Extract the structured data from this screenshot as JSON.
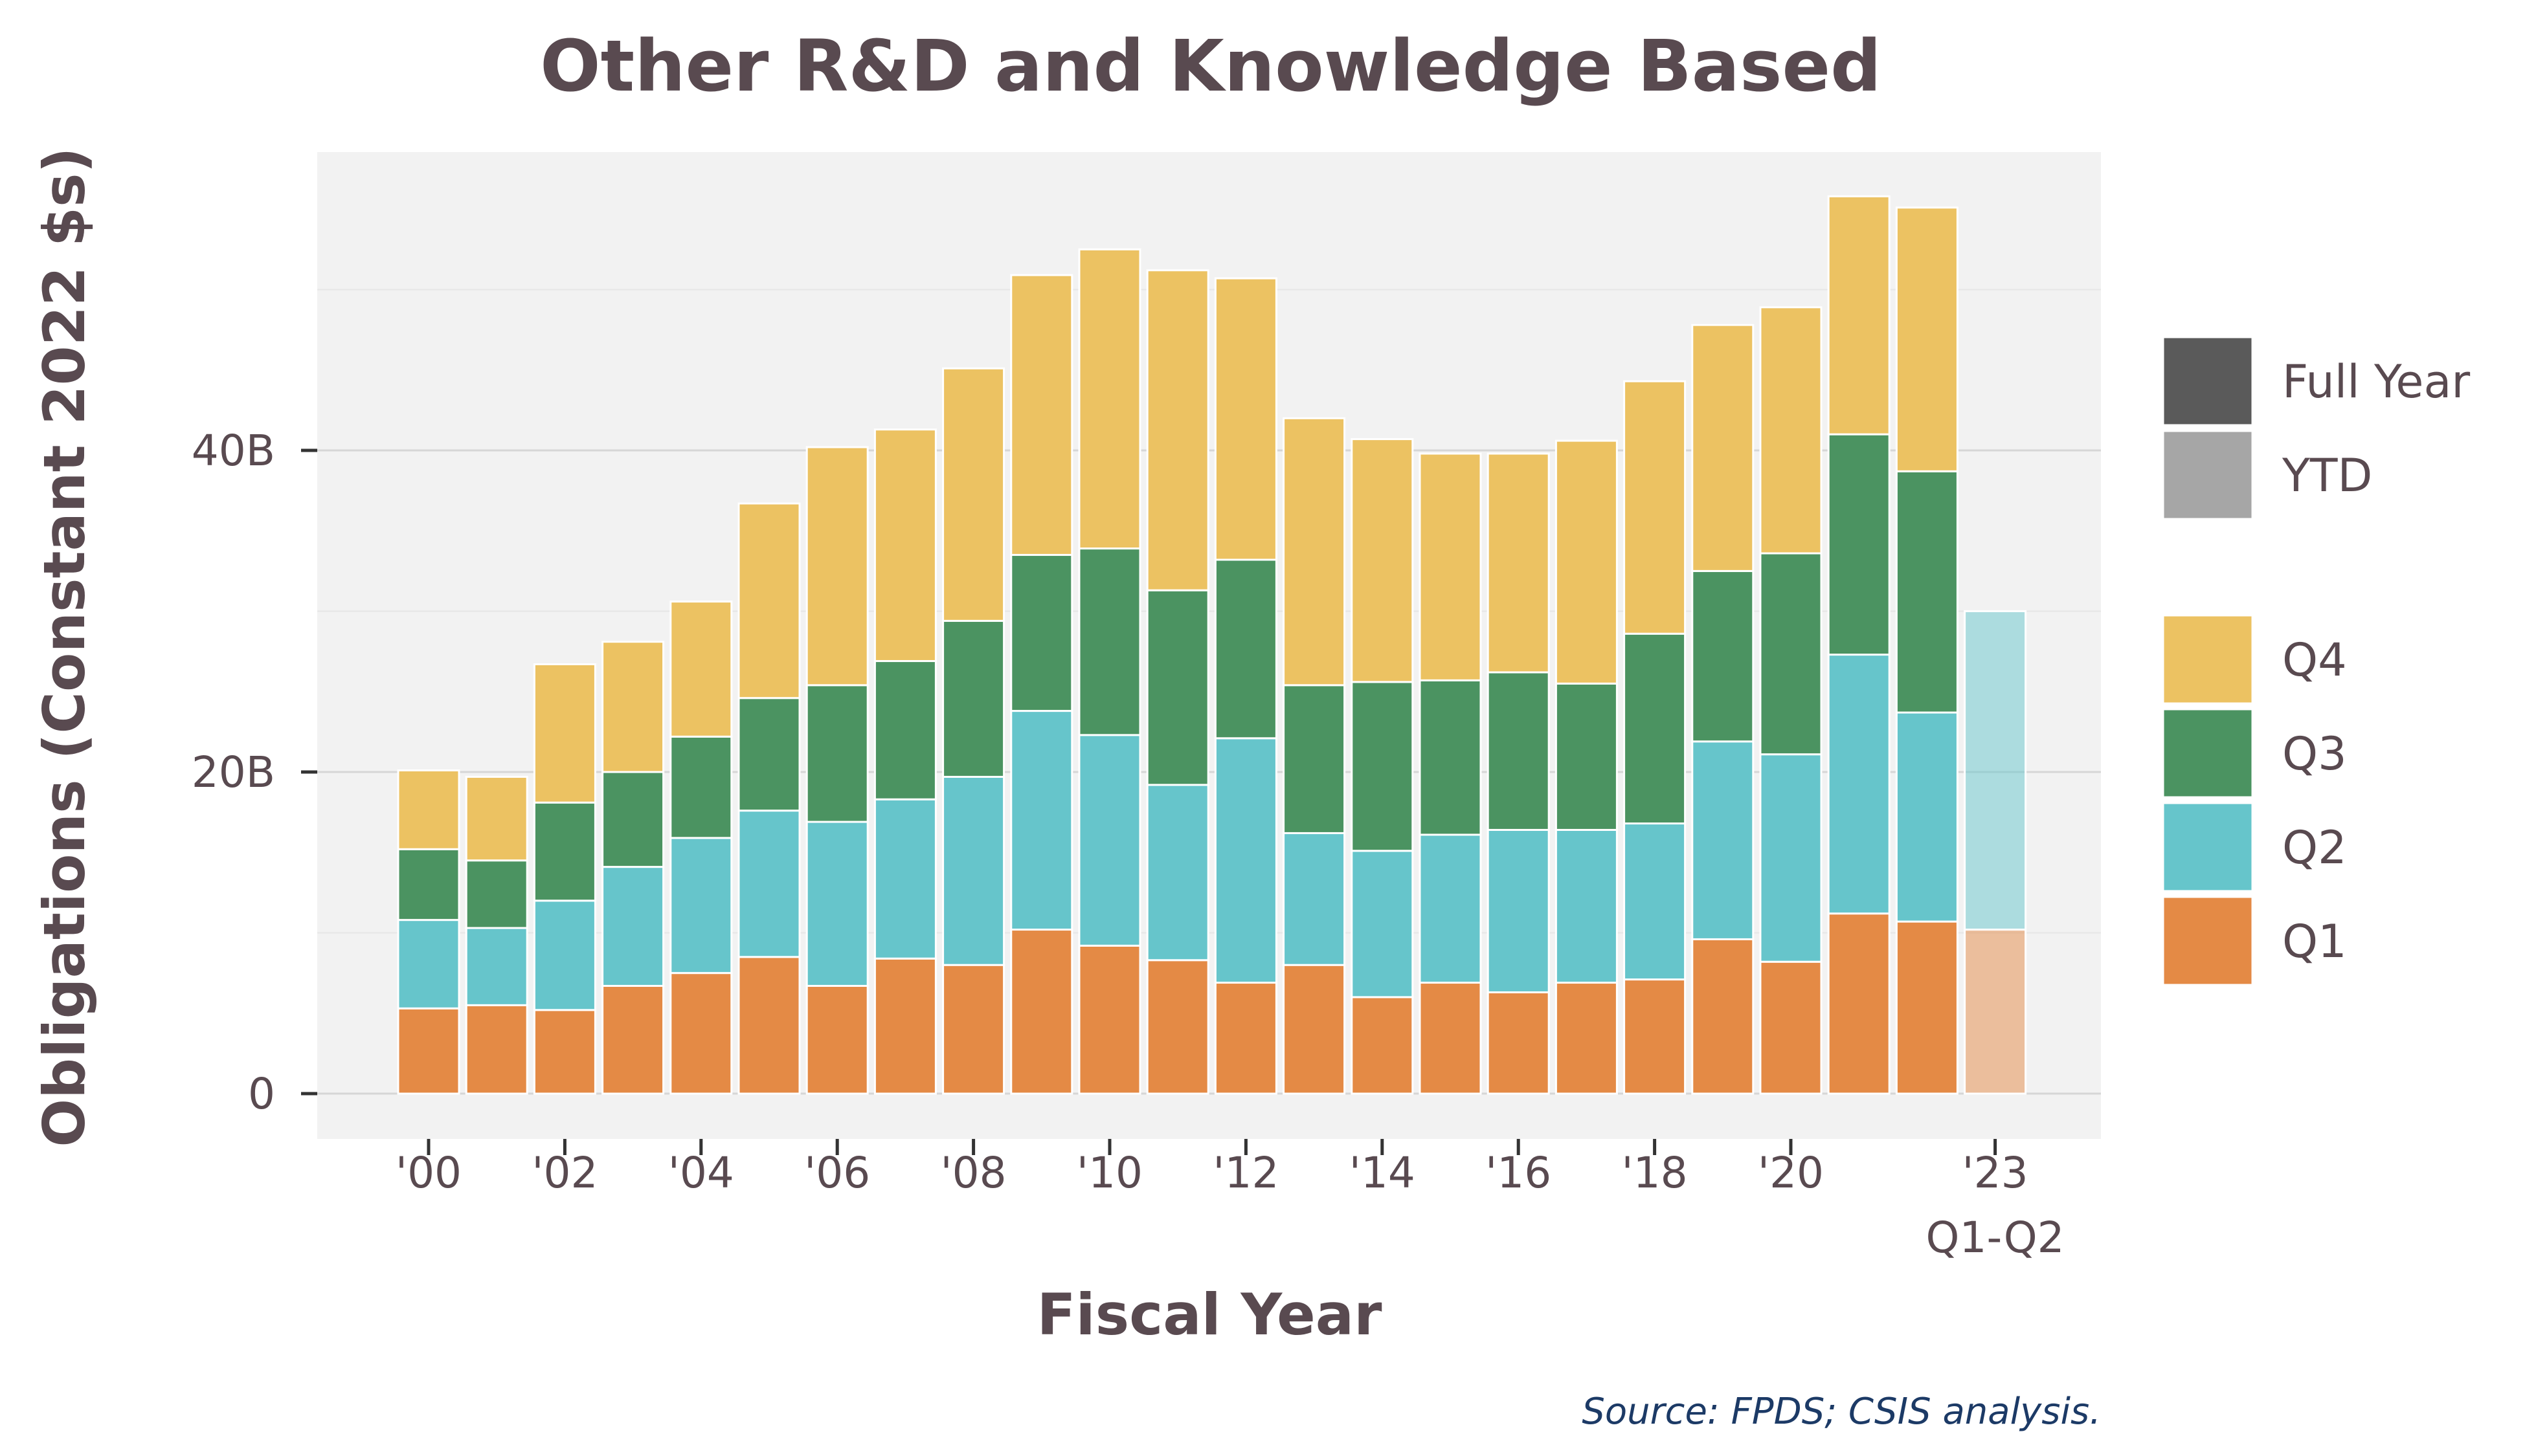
{
  "chart_data": {
    "type": "bar",
    "stacked": true,
    "title": "Other R&D and Knowledge Based",
    "xlabel": "Fiscal Year",
    "ylabel": "Obligations (Constant 2022 $s)",
    "source": "Source: FPDS; CSIS analysis.",
    "ylim": [
      0,
      58
    ],
    "y_unit": "billions",
    "y_ticks": [
      {
        "value": 0,
        "label": "0"
      },
      {
        "value": 20,
        "label": "20B"
      },
      {
        "value": 40,
        "label": "40B"
      }
    ],
    "grid": true,
    "categories": [
      "2000",
      "2001",
      "2002",
      "2003",
      "2004",
      "2005",
      "2006",
      "2007",
      "2008",
      "2009",
      "2010",
      "2011",
      "2012",
      "2013",
      "2014",
      "2015",
      "2016",
      "2017",
      "2018",
      "2019",
      "2020",
      "2021",
      "2022",
      "2023"
    ],
    "x_tick_labels": [
      {
        "category": "2000",
        "label": "'00"
      },
      {
        "category": "2002",
        "label": "'02"
      },
      {
        "category": "2004",
        "label": "'04"
      },
      {
        "category": "2006",
        "label": "'06"
      },
      {
        "category": "2008",
        "label": "'08"
      },
      {
        "category": "2010",
        "label": "'10"
      },
      {
        "category": "2012",
        "label": "'12"
      },
      {
        "category": "2014",
        "label": "'14"
      },
      {
        "category": "2016",
        "label": "'16"
      },
      {
        "category": "2018",
        "label": "'18"
      },
      {
        "category": "2020",
        "label": "'20"
      },
      {
        "category": "2023",
        "label": "'23",
        "sublabel": "Q1-Q2"
      }
    ],
    "series": [
      {
        "name": "Q1",
        "color": "#e48a45",
        "values": [
          5.3,
          5.5,
          5.2,
          6.7,
          7.5,
          8.5,
          6.7,
          8.4,
          8.0,
          10.2,
          9.2,
          8.3,
          6.9,
          8.0,
          6.0,
          6.9,
          6.3,
          6.9,
          7.1,
          9.6,
          8.2,
          11.2,
          10.7,
          10.2
        ]
      },
      {
        "name": "Q2",
        "color": "#66c5cb",
        "values": [
          5.5,
          4.8,
          6.8,
          7.4,
          8.4,
          9.1,
          10.2,
          9.9,
          11.7,
          13.6,
          13.1,
          10.9,
          15.2,
          8.2,
          9.1,
          9.2,
          10.1,
          9.5,
          9.7,
          12.3,
          12.9,
          16.1,
          13.0,
          19.8
        ]
      },
      {
        "name": "Q3",
        "color": "#4b9361",
        "values": [
          4.4,
          4.2,
          6.1,
          5.9,
          6.3,
          7.0,
          8.5,
          8.6,
          9.7,
          9.7,
          11.6,
          12.1,
          11.1,
          9.2,
          10.5,
          9.6,
          9.8,
          9.1,
          11.8,
          10.6,
          12.5,
          13.7,
          15.0,
          0
        ]
      },
      {
        "name": "Q4",
        "color": "#ecc262",
        "values": [
          4.9,
          5.2,
          8.6,
          8.1,
          8.4,
          12.1,
          14.8,
          14.4,
          15.7,
          17.4,
          18.6,
          19.9,
          17.5,
          16.6,
          15.1,
          14.1,
          13.6,
          15.1,
          15.7,
          15.3,
          15.3,
          14.8,
          16.4,
          0
        ]
      }
    ],
    "ytd_categories": [
      "2023"
    ],
    "legend": {
      "placement": "right",
      "period_items": [
        {
          "label": "Full Year",
          "color": "#5a5a5a"
        },
        {
          "label": "YTD",
          "color": "#a6a6a6"
        }
      ],
      "quarter_order": [
        "Q4",
        "Q3",
        "Q2",
        "Q1"
      ]
    },
    "panel_background": "#f2f2f2"
  }
}
